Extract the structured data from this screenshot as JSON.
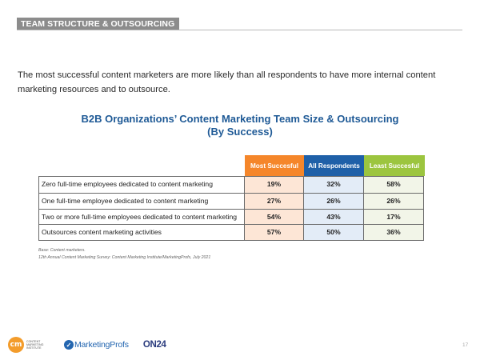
{
  "section_header": "TEAM STRUCTURE & OUTSOURCING",
  "intro_text": "The most successful content marketers are more likely than all respondents to have more internal content marketing resources and to outsource.",
  "chart_title": {
    "line1": "B2B Organizations’ Content Marketing Team Size & Outsourcing",
    "line2": "(By Success)"
  },
  "table": {
    "columns": [
      {
        "label": "Most Succesful",
        "color": "#f5862a"
      },
      {
        "label": "All Respondents",
        "color": "#1f60a8"
      },
      {
        "label": "Least  Succesful",
        "color": "#9cc53f"
      }
    ],
    "rows": [
      {
        "label": "Zero full-time employees dedicated to content marketing",
        "values": [
          "19%",
          "32%",
          "58%"
        ]
      },
      {
        "label": "One full-time employee dedicated to content marketing",
        "values": [
          "27%",
          "26%",
          "26%"
        ]
      },
      {
        "label": "Two or more full-time employees dedicated to content marketing",
        "values": [
          "54%",
          "43%",
          "17%"
        ]
      },
      {
        "label": "Outsources content marketing activities",
        "values": [
          "57%",
          "50%",
          "36%"
        ]
      }
    ]
  },
  "footnote": {
    "base": "Base: Content marketers.",
    "source": "12th Annual Content Marketing Survey: Content Marketing Institute/MarketingProfs, July 2021"
  },
  "logos": {
    "cmi_mark": "cm",
    "cmi_text": "Content Marketing Institute",
    "mp_text": "MarketingProfs",
    "on24_text": "ON24"
  },
  "page_number": "17"
}
